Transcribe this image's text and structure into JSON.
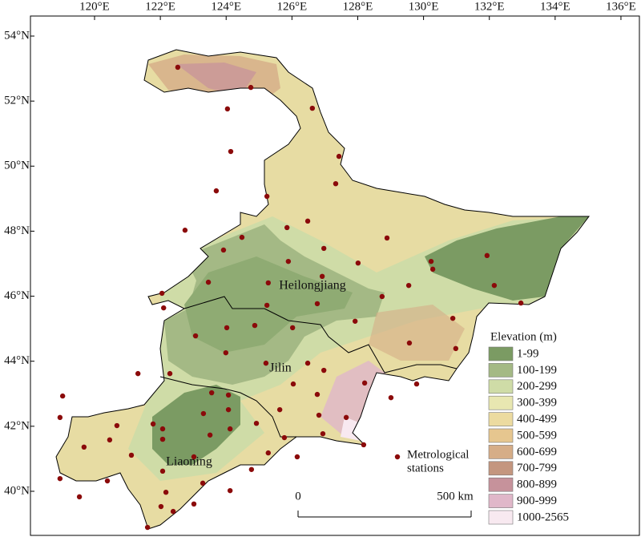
{
  "map": {
    "lon_ticks": [
      {
        "value": 120,
        "label": "120°E"
      },
      {
        "value": 122,
        "label": "122°E"
      },
      {
        "value": 124,
        "label": "124°E"
      },
      {
        "value": 126,
        "label": "126°E"
      },
      {
        "value": 128,
        "label": "128°E"
      },
      {
        "value": 130,
        "label": "130°E"
      },
      {
        "value": 132,
        "label": "132°E"
      },
      {
        "value": 134,
        "label": "134°E"
      },
      {
        "value": 136,
        "label": "136°E"
      }
    ],
    "lat_ticks": [
      {
        "value": 54,
        "label": "54°N"
      },
      {
        "value": 52,
        "label": "52°N"
      },
      {
        "value": 50,
        "label": "50°N"
      },
      {
        "value": 48,
        "label": "48°N"
      },
      {
        "value": 46,
        "label": "46°N"
      },
      {
        "value": 44,
        "label": "44°N"
      },
      {
        "value": 42,
        "label": "42°N"
      },
      {
        "value": 40,
        "label": "40°N"
      }
    ],
    "provinces": [
      "Heilongjiang",
      "Jilin",
      "Liaoning"
    ],
    "legend": {
      "title": "Elevation (m)",
      "items": [
        {
          "label": "1-99",
          "color": "#7b9b63"
        },
        {
          "label": "100-199",
          "color": "#a4b985"
        },
        {
          "label": "200-299",
          "color": "#cfdca7"
        },
        {
          "label": "300-399",
          "color": "#e8e7b1"
        },
        {
          "label": "400-499",
          "color": "#ecdba0"
        },
        {
          "label": "500-599",
          "color": "#e6c68f"
        },
        {
          "label": "600-699",
          "color": "#d6ad87"
        },
        {
          "label": "700-799",
          "color": "#c4967f"
        },
        {
          "label": "800-899",
          "color": "#c6929b"
        },
        {
          "label": "900-999",
          "color": "#e0b7c9"
        },
        {
          "label": "1000-2565",
          "color": "#f8e9f0"
        }
      ]
    },
    "station_label": [
      "Metrological",
      "stations"
    ],
    "scale_bar": {
      "start": "0",
      "end": "500 km"
    },
    "stations": [
      [
        122.53,
        53.04
      ],
      [
        124.75,
        52.42
      ],
      [
        124.04,
        51.76
      ],
      [
        126.62,
        51.78
      ],
      [
        124.14,
        50.45
      ],
      [
        127.43,
        50.3
      ],
      [
        123.7,
        49.24
      ],
      [
        125.24,
        49.07
      ],
      [
        127.33,
        49.46
      ],
      [
        122.75,
        48.03
      ],
      [
        124.48,
        47.81
      ],
      [
        125.85,
        48.11
      ],
      [
        126.48,
        48.31
      ],
      [
        128.89,
        47.79
      ],
      [
        123.92,
        47.42
      ],
      [
        126.97,
        47.47
      ],
      [
        125.89,
        47.07
      ],
      [
        128.01,
        47.02
      ],
      [
        130.23,
        47.07
      ],
      [
        131.93,
        47.25
      ],
      [
        130.28,
        46.83
      ],
      [
        126.92,
        46.61
      ],
      [
        125.28,
        46.41
      ],
      [
        123.46,
        46.43
      ],
      [
        129.55,
        46.33
      ],
      [
        132.15,
        46.33
      ],
      [
        122.05,
        46.09
      ],
      [
        122.1,
        45.64
      ],
      [
        128.74,
        45.99
      ],
      [
        125.24,
        45.72
      ],
      [
        126.77,
        45.77
      ],
      [
        132.96,
        45.79
      ],
      [
        127.92,
        45.23
      ],
      [
        130.89,
        45.32
      ],
      [
        123.07,
        44.78
      ],
      [
        124.02,
        45.03
      ],
      [
        124.87,
        45.1
      ],
      [
        126.02,
        45.03
      ],
      [
        123.99,
        44.26
      ],
      [
        129.57,
        44.56
      ],
      [
        130.98,
        44.39
      ],
      [
        125.21,
        43.94
      ],
      [
        126.48,
        43.94
      ],
      [
        121.32,
        43.62
      ],
      [
        122.29,
        43.62
      ],
      [
        126.97,
        43.72
      ],
      [
        128.21,
        43.33
      ],
      [
        126.04,
        43.3
      ],
      [
        129.79,
        43.3
      ],
      [
        124.07,
        42.96
      ],
      [
        123.56,
        43.03
      ],
      [
        119.03,
        42.93
      ],
      [
        129.01,
        42.88
      ],
      [
        126.77,
        42.98
      ],
      [
        118.95,
        42.27
      ],
      [
        120.68,
        42.02
      ],
      [
        121.78,
        42.07
      ],
      [
        122.07,
        41.92
      ],
      [
        123.31,
        42.39
      ],
      [
        124.07,
        42.51
      ],
      [
        124.92,
        42.09
      ],
      [
        125.63,
        42.51
      ],
      [
        126.82,
        42.34
      ],
      [
        127.65,
        42.27
      ],
      [
        119.68,
        41.36
      ],
      [
        120.46,
        41.58
      ],
      [
        121.12,
        41.11
      ],
      [
        122.07,
        41.6
      ],
      [
        123.51,
        41.73
      ],
      [
        124.12,
        41.92
      ],
      [
        125.77,
        41.65
      ],
      [
        126.94,
        41.77
      ],
      [
        128.18,
        41.43
      ],
      [
        123.02,
        41.06
      ],
      [
        126.16,
        41.06
      ],
      [
        124.77,
        40.67
      ],
      [
        118.95,
        40.39
      ],
      [
        120.39,
        40.32
      ],
      [
        122.07,
        40.62
      ],
      [
        123.29,
        40.25
      ],
      [
        124.12,
        40.02
      ],
      [
        119.54,
        39.83
      ],
      [
        122.17,
        39.97
      ],
      [
        123.02,
        39.61
      ],
      [
        122.02,
        39.53
      ],
      [
        122.39,
        39.38
      ],
      [
        121.61,
        38.89
      ],
      [
        125.28,
        41.18
      ]
    ]
  }
}
